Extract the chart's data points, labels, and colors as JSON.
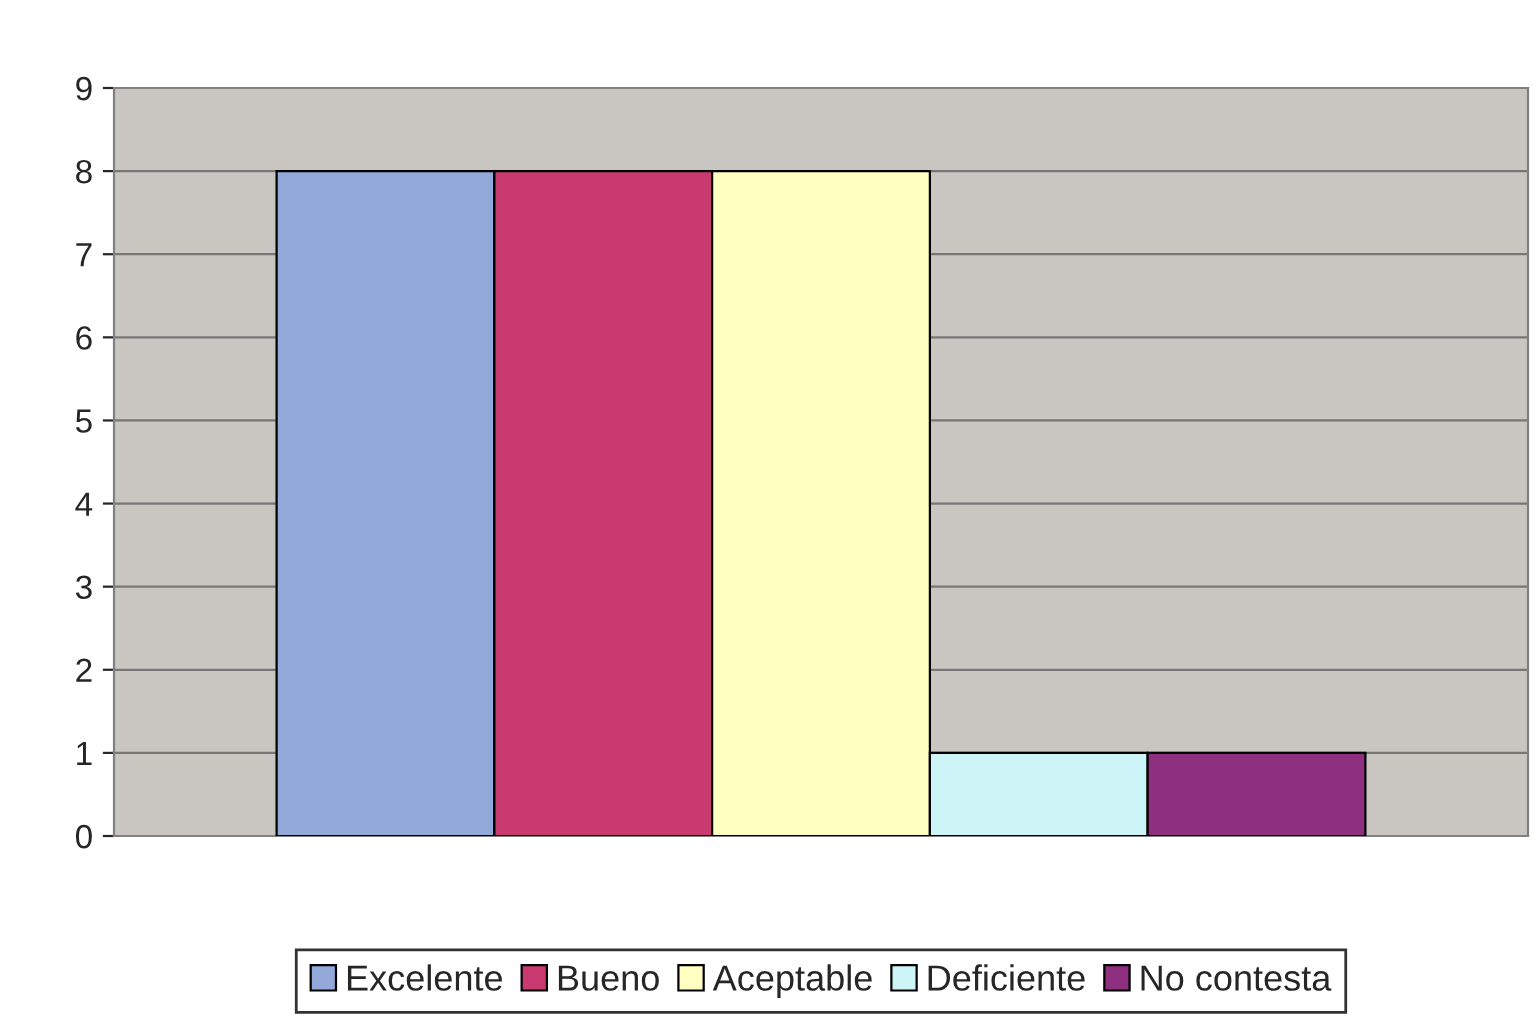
{
  "chart_data": {
    "type": "bar",
    "categories": [
      null
    ],
    "series": [
      {
        "name": "Excelente",
        "color": "#93a9d9",
        "values": [
          8
        ]
      },
      {
        "name": "Bueno",
        "color": "#c93a70",
        "values": [
          8
        ]
      },
      {
        "name": "Aceptable",
        "color": "#ffffc2",
        "values": [
          8
        ]
      },
      {
        "name": "Deficiente",
        "color": "#cdf5f8",
        "values": [
          1
        ]
      },
      {
        "name": "No contesta",
        "color": "#8e2f80",
        "values": [
          1
        ]
      }
    ],
    "ylim": [
      0,
      9
    ],
    "yticks": [
      0,
      1,
      2,
      3,
      4,
      5,
      6,
      7,
      8,
      9
    ],
    "grid": "y",
    "legend": "bottom"
  }
}
